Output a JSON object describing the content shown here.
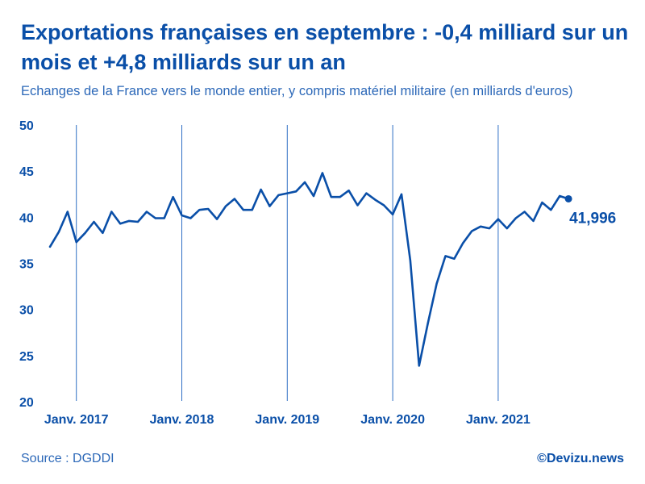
{
  "header": {
    "title": "Exportations françaises en septembre : -0,4 milliard sur un mois et +4,8 milliards sur un an",
    "subtitle": "Echanges de la France vers le monde entier, y compris matériel militaire (en milliards d'euros)"
  },
  "footer": {
    "source": "Source : DGDDI",
    "brand": "©Devizu.news"
  },
  "colors": {
    "line": "#0a4fa8",
    "axis_text": "#0a4fa8",
    "year_lines": "#2f6fc4"
  },
  "chart_data": {
    "type": "line",
    "title": "Exportations françaises en septembre : -0,4 milliard sur un mois et +4,8 milliards sur un an",
    "subtitle": "Echanges de la France vers le monde entier, y compris matériel militaire (en milliards d'euros)",
    "xlabel": "",
    "ylabel": "",
    "ylim": [
      20,
      50
    ],
    "yticks": [
      20,
      25,
      30,
      35,
      40,
      45,
      50
    ],
    "grid": "vertical lines at January of each year",
    "legend": "none",
    "x_period": "monthly, October 2016 to September 2021",
    "year_markers": [
      {
        "label": "Janv. 2017",
        "index": 3
      },
      {
        "label": "Janv. 2018",
        "index": 15
      },
      {
        "label": "Janv. 2019",
        "index": 27
      },
      {
        "label": "Janv. 2020",
        "index": 39
      },
      {
        "label": "Janv. 2021",
        "index": 51
      }
    ],
    "values": [
      36.8,
      38.4,
      40.6,
      37.3,
      38.3,
      39.5,
      38.3,
      40.6,
      39.3,
      39.6,
      39.5,
      40.6,
      39.9,
      39.9,
      42.2,
      40.2,
      39.9,
      40.8,
      40.9,
      39.8,
      41.2,
      42.0,
      40.8,
      40.8,
      43.0,
      41.2,
      42.4,
      42.6,
      42.8,
      43.8,
      42.3,
      44.8,
      42.2,
      42.2,
      42.9,
      41.3,
      42.6,
      41.9,
      41.3,
      40.3,
      42.5,
      35.3,
      23.9,
      28.5,
      32.8,
      35.8,
      35.5,
      37.2,
      38.5,
      39.0,
      38.8,
      39.8,
      38.8,
      39.9,
      40.6,
      39.6,
      41.6,
      40.8,
      42.3,
      42.0
    ],
    "last_value": 41.996,
    "annotations": [
      {
        "text": "41,996",
        "at_index": 59
      }
    ]
  }
}
